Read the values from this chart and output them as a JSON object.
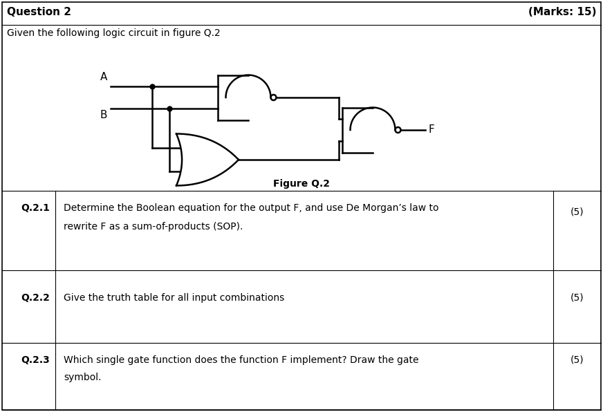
{
  "title": "Question 2",
  "marks": "(Marks: 15)",
  "subtitle": "Given the following logic circuit in figure Q.2",
  "figure_label": "Figure Q.2",
  "questions": [
    {
      "id": "Q.2.1",
      "text": "Determine the Boolean equation for the output F, and use De Morgan’s law to",
      "text2": "rewrite F as a sum-of-products (SOP).",
      "marks": "(5)"
    },
    {
      "id": "Q.2.2",
      "text": "Give the truth table for all input combinations",
      "text2": "",
      "marks": "(5)"
    },
    {
      "id": "Q.2.3",
      "text": "Which single gate function does the function F implement? Draw the gate",
      "text2": "symbol.",
      "marks": "(5)"
    }
  ],
  "bg_color": "#ffffff",
  "border_color": "#000000",
  "text_color": "#000000",
  "lw": 1.8,
  "bubble_r": 4
}
